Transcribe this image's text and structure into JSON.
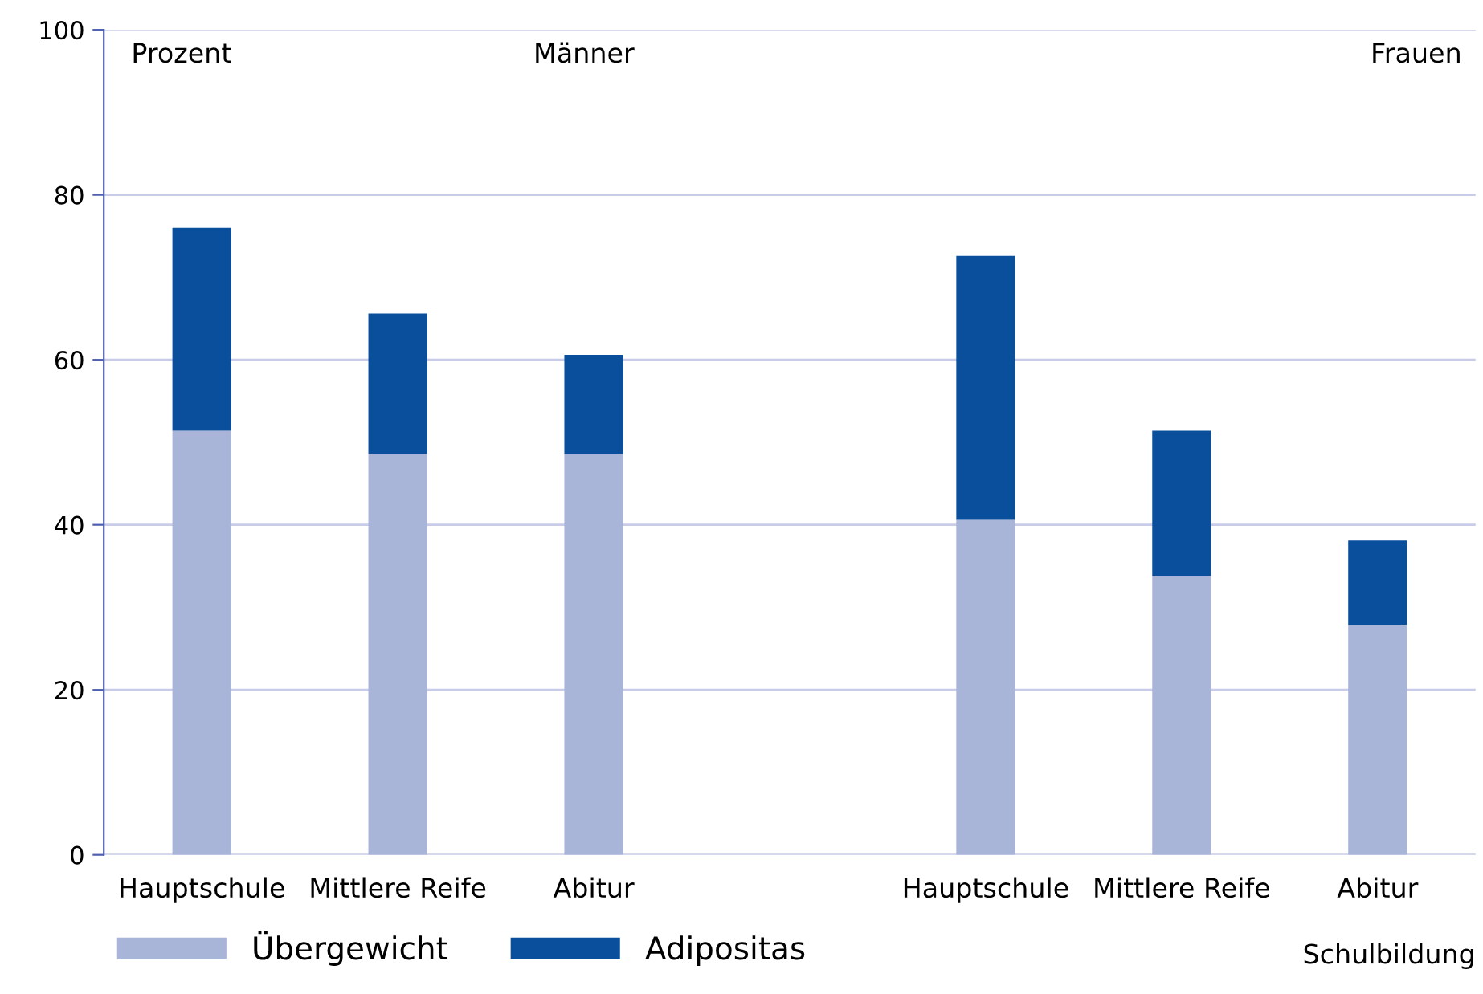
{
  "chart_data": {
    "type": "bar",
    "stacked": true,
    "ylabel": "Prozent",
    "xlabel": "Schulbildung",
    "annotations": [
      "Männer",
      "Frauen"
    ],
    "categories": [
      "Hauptschule",
      "Mittlere Reife",
      "Abitur",
      null,
      "Hauptschule",
      "Mittlere Reife",
      "Abitur"
    ],
    "series": [
      {
        "name": "Übergewicht",
        "color": "#a8b4d8",
        "values": [
          51.4,
          48.6,
          48.6,
          null,
          40.6,
          33.8,
          27.9
        ]
      },
      {
        "name": "Adipositas",
        "color": "#0a4f9c",
        "values": [
          24.6,
          17.0,
          12.0,
          null,
          32.0,
          17.6,
          10.2
        ]
      }
    ],
    "ylim": [
      0,
      100
    ],
    "yticks": [
      0,
      20,
      40,
      60,
      80,
      100
    ],
    "grid": "y",
    "legend": "bottom left"
  }
}
